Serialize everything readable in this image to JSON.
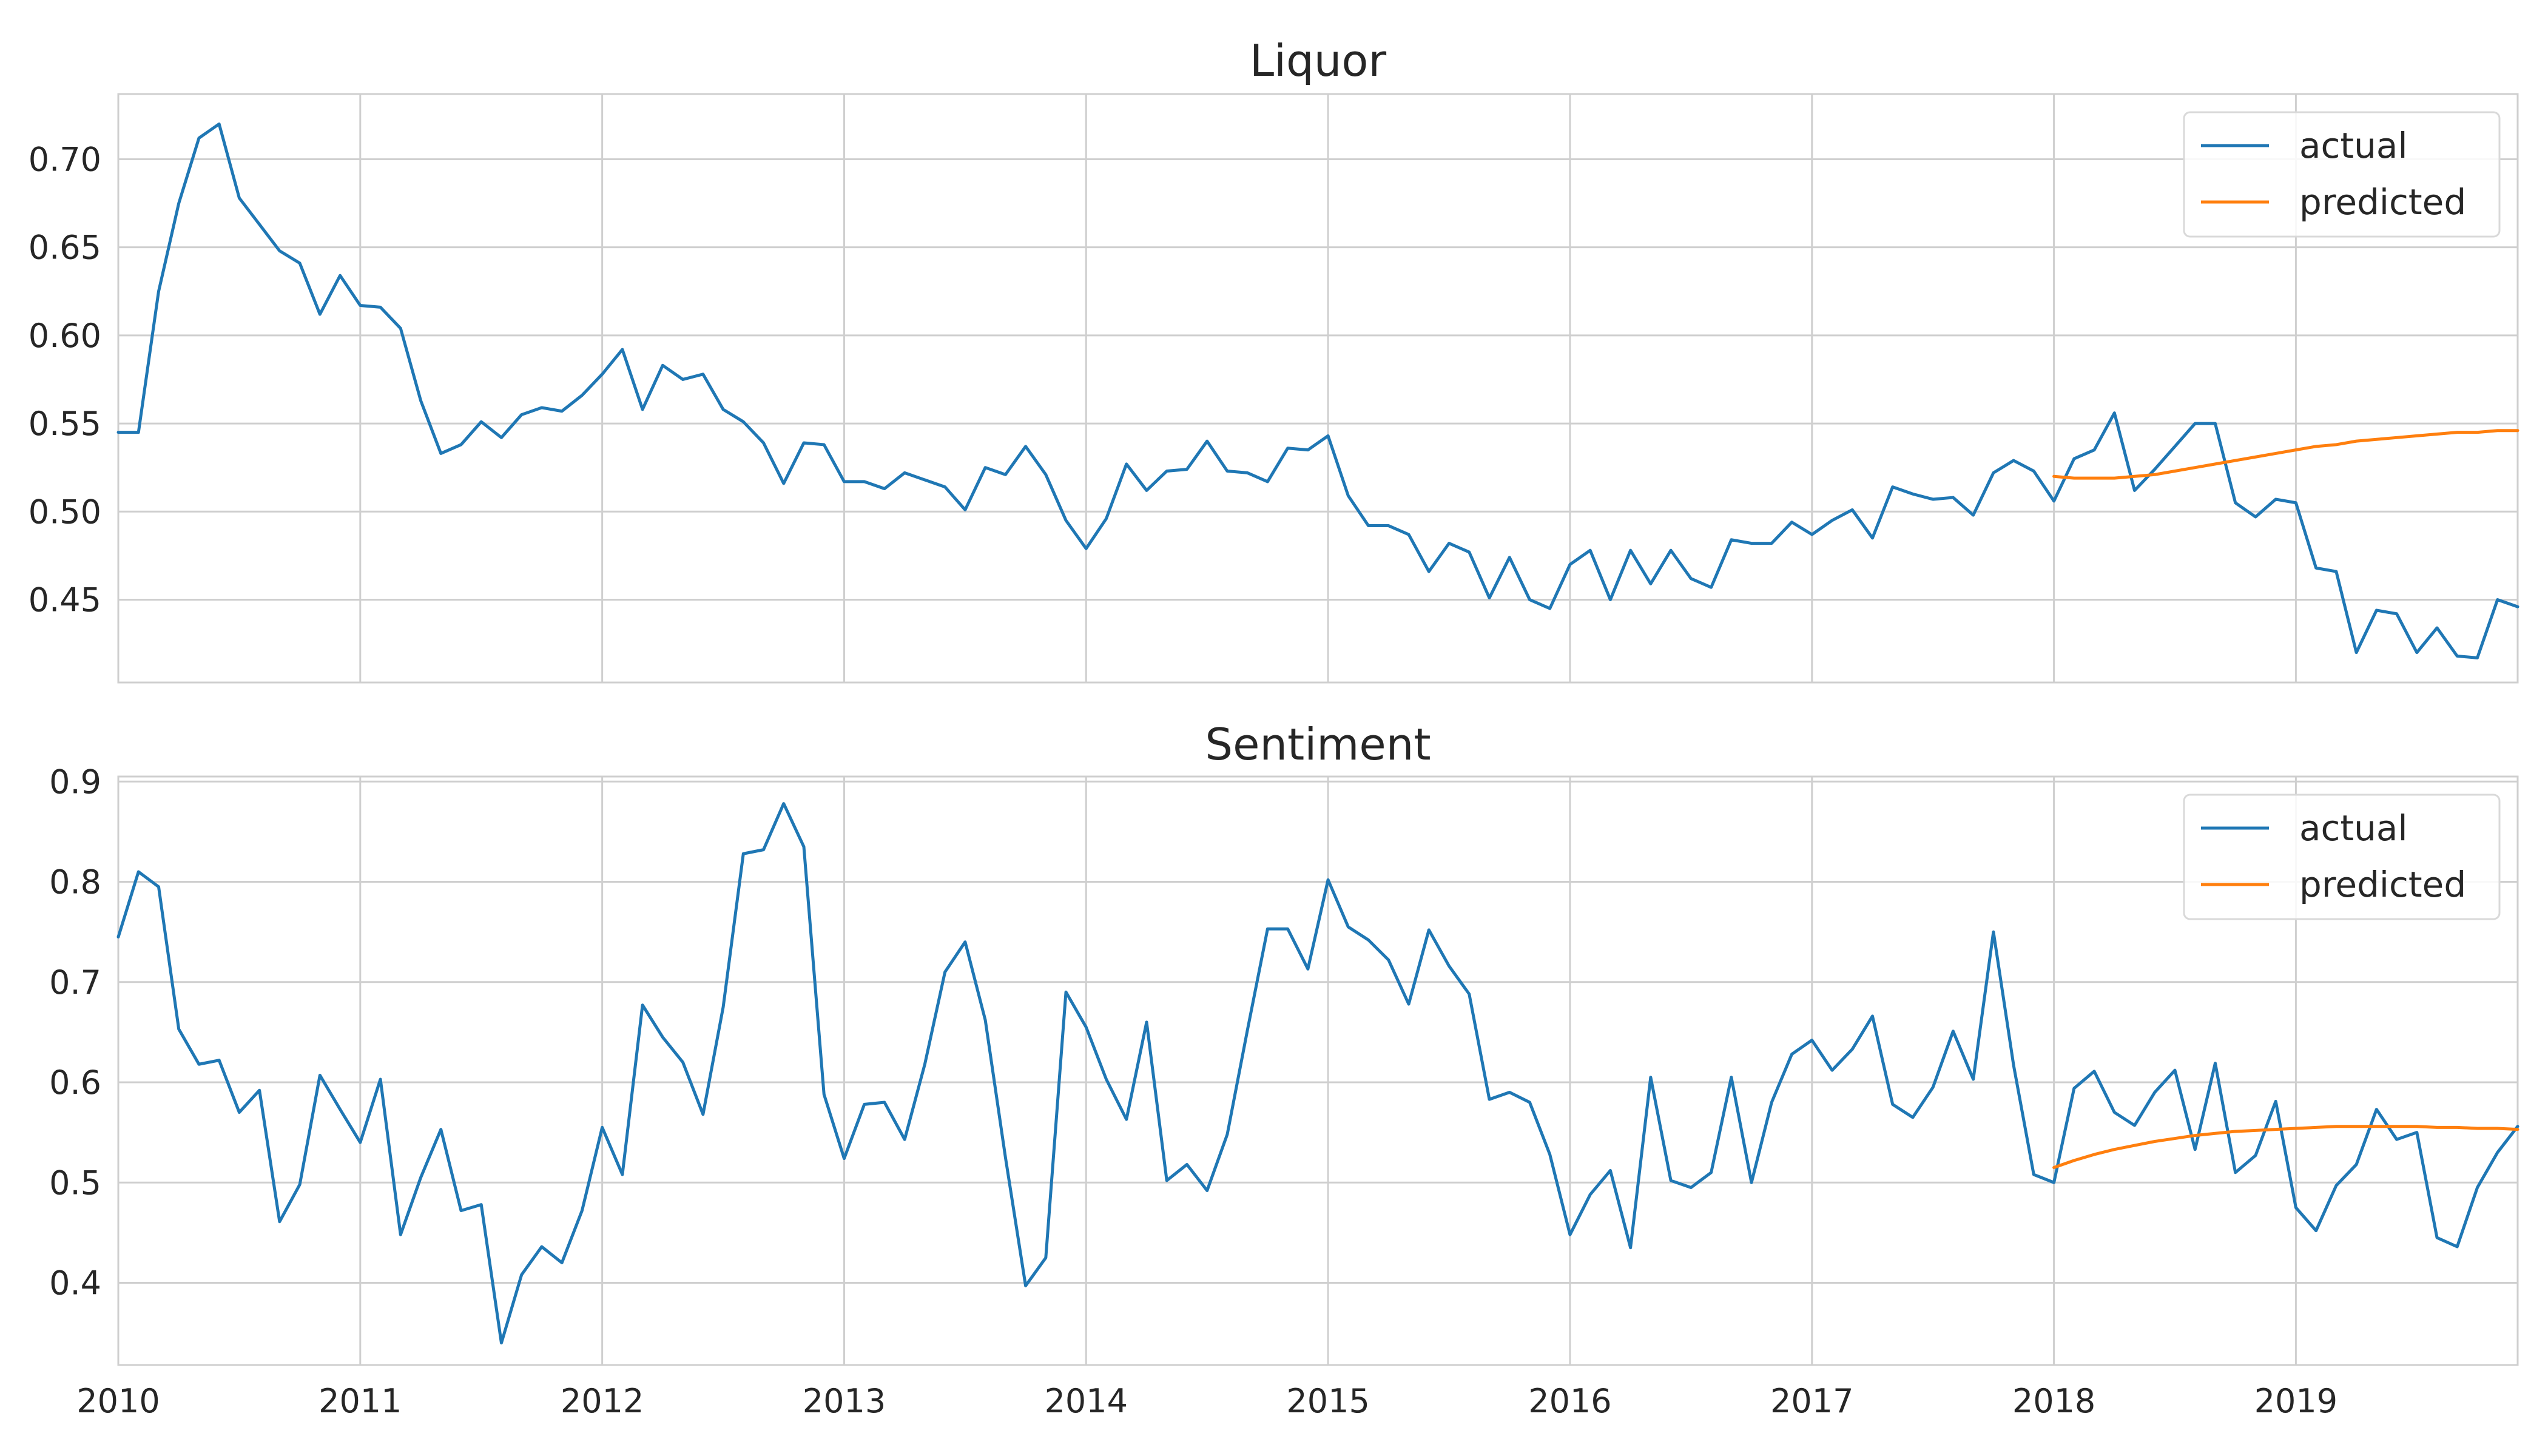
{
  "x_axis_labels": [
    "2010",
    "2011",
    "2012",
    "2013",
    "2014",
    "2015",
    "2016",
    "2017",
    "2018",
    "2019"
  ],
  "colors": {
    "actual": "#1f77b4",
    "predicted": "#ff7f0e",
    "grid": "#cfcfcf",
    "spine": "#cfcfcf"
  },
  "chart_data": [
    {
      "type": "line",
      "title": "Liquor",
      "ylim": [
        0.403,
        0.737
      ],
      "yticks": [
        0.45,
        0.5,
        0.55,
        0.6,
        0.65,
        0.7
      ],
      "ytick_labels": [
        "0.45",
        "0.50",
        "0.55",
        "0.60",
        "0.65",
        "0.70"
      ],
      "x_start": "2010-01",
      "x_end": "2019-12",
      "grid": true,
      "legend_position": "top-right",
      "series": [
        {
          "name": "actual",
          "start": "2010-01",
          "values": [
            0.545,
            0.545,
            0.625,
            0.675,
            0.712,
            0.72,
            0.678,
            0.663,
            0.648,
            0.641,
            0.612,
            0.634,
            0.617,
            0.616,
            0.604,
            0.563,
            0.533,
            0.538,
            0.551,
            0.542,
            0.555,
            0.559,
            0.557,
            0.566,
            0.578,
            0.592,
            0.558,
            0.583,
            0.575,
            0.578,
            0.558,
            0.551,
            0.539,
            0.516,
            0.539,
            0.538,
            0.517,
            0.517,
            0.513,
            0.522,
            0.518,
            0.514,
            0.501,
            0.525,
            0.521,
            0.537,
            0.521,
            0.495,
            0.479,
            0.496,
            0.527,
            0.512,
            0.523,
            0.524,
            0.54,
            0.523,
            0.522,
            0.517,
            0.536,
            0.535,
            0.543,
            0.509,
            0.492,
            0.492,
            0.487,
            0.466,
            0.482,
            0.477,
            0.451,
            0.474,
            0.45,
            0.445,
            0.47,
            0.478,
            0.45,
            0.478,
            0.459,
            0.478,
            0.462,
            0.457,
            0.484,
            0.482,
            0.482,
            0.494,
            0.487,
            0.495,
            0.501,
            0.485,
            0.514,
            0.51,
            0.507,
            0.508,
            0.498,
            0.522,
            0.529,
            0.523,
            0.506,
            0.53,
            0.535,
            0.556,
            0.512,
            0.524,
            0.537,
            0.55,
            0.55,
            0.505,
            0.497,
            0.507,
            0.505,
            0.468,
            0.466,
            0.42,
            0.444,
            0.442,
            0.42,
            0.434,
            0.418,
            0.417,
            0.45,
            0.446
          ]
        },
        {
          "name": "predicted",
          "start": "2018-01",
          "values": [
            0.52,
            0.519,
            0.519,
            0.519,
            0.52,
            0.521,
            0.523,
            0.525,
            0.527,
            0.529,
            0.531,
            0.533,
            0.535,
            0.537,
            0.538,
            0.54,
            0.541,
            0.542,
            0.543,
            0.544,
            0.545,
            0.545,
            0.546,
            0.546
          ]
        }
      ]
    },
    {
      "type": "line",
      "title": "Sentiment",
      "ylim": [
        0.318,
        0.905
      ],
      "yticks": [
        0.4,
        0.5,
        0.6,
        0.7,
        0.8,
        0.9
      ],
      "ytick_labels": [
        "0.4",
        "0.5",
        "0.6",
        "0.7",
        "0.8",
        "0.9"
      ],
      "x_start": "2010-01",
      "x_end": "2019-12",
      "grid": true,
      "legend_position": "top-right",
      "series": [
        {
          "name": "actual",
          "start": "2010-01",
          "values": [
            0.745,
            0.81,
            0.795,
            0.653,
            0.618,
            0.622,
            0.57,
            0.592,
            0.461,
            0.498,
            0.607,
            0.573,
            0.54,
            0.603,
            0.448,
            0.505,
            0.553,
            0.472,
            0.478,
            0.34,
            0.408,
            0.436,
            0.42,
            0.472,
            0.555,
            0.508,
            0.677,
            0.645,
            0.62,
            0.568,
            0.675,
            0.828,
            0.832,
            0.878,
            0.835,
            0.588,
            0.524,
            0.578,
            0.58,
            0.543,
            0.618,
            0.71,
            0.74,
            0.662,
            0.525,
            0.397,
            0.425,
            0.69,
            0.655,
            0.603,
            0.563,
            0.66,
            0.502,
            0.518,
            0.492,
            0.548,
            0.652,
            0.753,
            0.753,
            0.713,
            0.802,
            0.755,
            0.742,
            0.722,
            0.678,
            0.752,
            0.716,
            0.688,
            0.583,
            0.59,
            0.58,
            0.528,
            0.448,
            0.488,
            0.512,
            0.435,
            0.605,
            0.502,
            0.495,
            0.51,
            0.605,
            0.5,
            0.58,
            0.628,
            0.642,
            0.612,
            0.633,
            0.666,
            0.578,
            0.565,
            0.595,
            0.651,
            0.603,
            0.75,
            0.617,
            0.508,
            0.5,
            0.594,
            0.611,
            0.57,
            0.557,
            0.59,
            0.612,
            0.533,
            0.619,
            0.51,
            0.527,
            0.581,
            0.475,
            0.452,
            0.497,
            0.518,
            0.573,
            0.543,
            0.55,
            0.445,
            0.436,
            0.495,
            0.53,
            0.556
          ]
        },
        {
          "name": "predicted",
          "start": "2018-01",
          "values": [
            0.515,
            0.522,
            0.528,
            0.533,
            0.537,
            0.541,
            0.544,
            0.547,
            0.549,
            0.551,
            0.552,
            0.553,
            0.554,
            0.555,
            0.556,
            0.556,
            0.556,
            0.556,
            0.556,
            0.555,
            0.555,
            0.554,
            0.554,
            0.553
          ]
        }
      ]
    }
  ]
}
